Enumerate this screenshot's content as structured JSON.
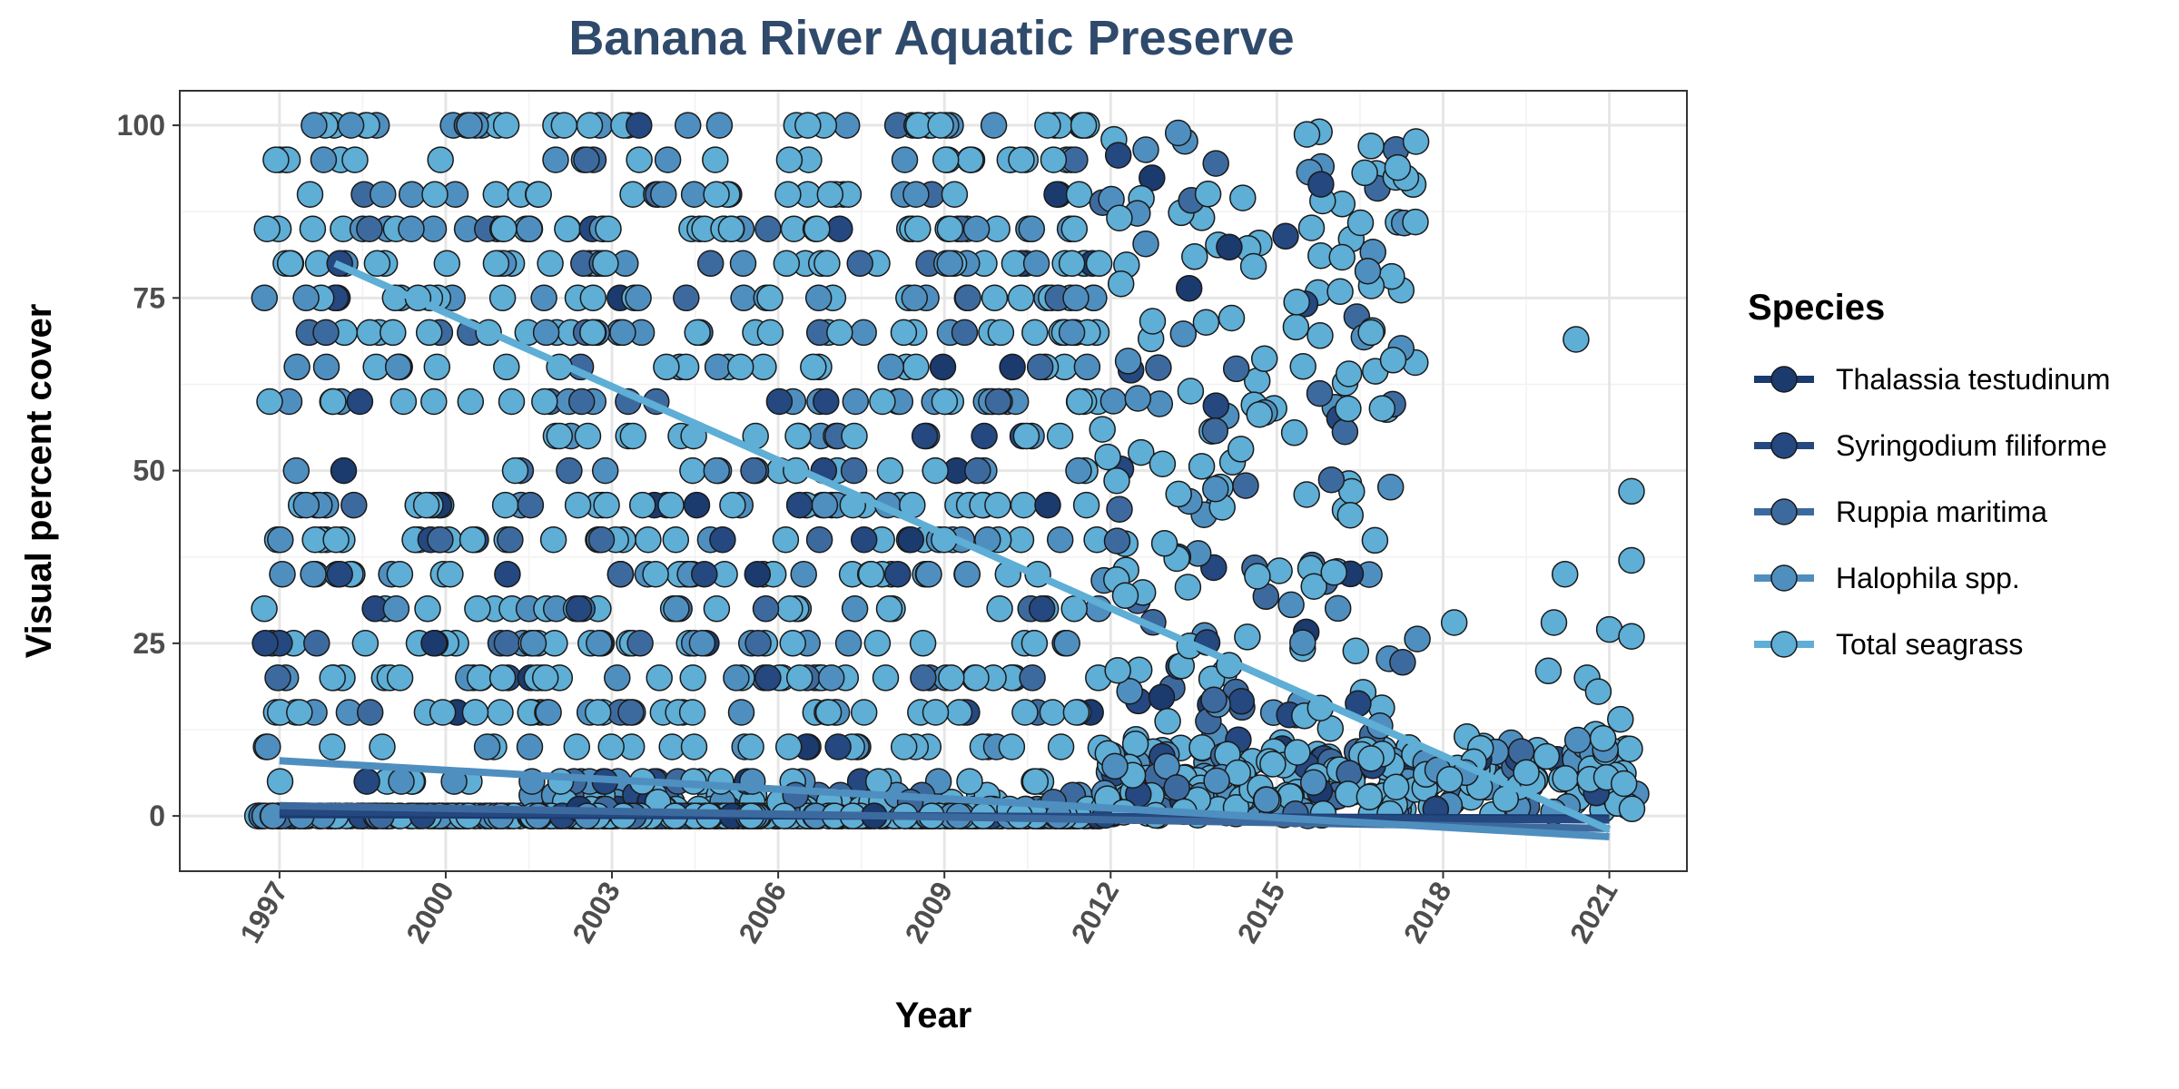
{
  "chart_data": {
    "type": "scatter",
    "title": "Banana River Aquatic Preserve",
    "xlabel": "Year",
    "ylabel": "Visual percent cover",
    "xlim": [
      1995.2,
      2022.4
    ],
    "ylim": [
      -8,
      105
    ],
    "x_ticks": [
      1997,
      2000,
      2003,
      2006,
      2009,
      2012,
      2015,
      2018,
      2021
    ],
    "y_ticks": [
      0,
      25,
      50,
      75,
      100
    ],
    "grid": true,
    "legend": {
      "title": "Species",
      "position": "right"
    },
    "series": [
      {
        "name": "Thalassia testudinum",
        "color": "#1b3a6e",
        "trend": {
          "x": [
            1997,
            2021
          ],
          "y": [
            0.2,
            -0.3
          ]
        }
      },
      {
        "name": "Syringodium filiforme",
        "color": "#24487f",
        "trend": {
          "x": [
            1997,
            2021
          ],
          "y": [
            0.6,
            -0.6
          ]
        }
      },
      {
        "name": "Ruppia maritima",
        "color": "#3d6a9e",
        "trend": {
          "x": [
            1997,
            2021
          ],
          "y": [
            1.5,
            -1.8
          ]
        }
      },
      {
        "name": "Halophila spp.",
        "color": "#4f8fc0",
        "trend": {
          "x": [
            1997,
            2021
          ],
          "y": [
            8,
            -3
          ]
        }
      },
      {
        "name": "Total seagrass",
        "color": "#5eaed6",
        "trend": {
          "x": [
            1998,
            2021
          ],
          "y": [
            80,
            -2
          ]
        }
      }
    ],
    "scatter_bands": [
      {
        "x_range": [
          1996.6,
          2001.5
        ],
        "y_values": [
          0,
          5,
          10,
          15,
          20,
          25,
          30,
          35,
          40,
          45,
          50,
          60,
          65,
          70,
          75,
          80,
          85,
          90,
          95,
          100
        ],
        "count": 340
      },
      {
        "x_range": [
          2001.5,
          2011.8
        ],
        "y_values": [
          0,
          1,
          2,
          3,
          5,
          10,
          15,
          20,
          25,
          30,
          35,
          40,
          45,
          50,
          55,
          60,
          65,
          70,
          75,
          80,
          85,
          90,
          95,
          100
        ],
        "count": 1050
      },
      {
        "x_range": [
          2011.8,
          2017.6
        ],
        "y_continuous": [
          0,
          100
        ],
        "count": 420
      },
      {
        "x_range": [
          2017.6,
          2021.5
        ],
        "y_continuous": [
          0,
          12
        ],
        "count": 90
      }
    ],
    "outliers": [
      {
        "x": 2016.7,
        "y": 97
      },
      {
        "x": 2016.7,
        "y": 70
      },
      {
        "x": 2017.1,
        "y": 66
      },
      {
        "x": 2017.5,
        "y": 86
      },
      {
        "x": 2016.3,
        "y": 64
      },
      {
        "x": 2016.9,
        "y": 59
      },
      {
        "x": 2018.2,
        "y": 28
      },
      {
        "x": 2020.0,
        "y": 28
      },
      {
        "x": 2020.2,
        "y": 35
      },
      {
        "x": 2020.4,
        "y": 69
      },
      {
        "x": 2019.9,
        "y": 21
      },
      {
        "x": 2020.6,
        "y": 20
      },
      {
        "x": 2021.0,
        "y": 27
      },
      {
        "x": 2021.4,
        "y": 47
      },
      {
        "x": 2021.4,
        "y": 37
      },
      {
        "x": 2021.4,
        "y": 26
      },
      {
        "x": 2020.8,
        "y": 18
      },
      {
        "x": 2021.2,
        "y": 14
      }
    ]
  }
}
